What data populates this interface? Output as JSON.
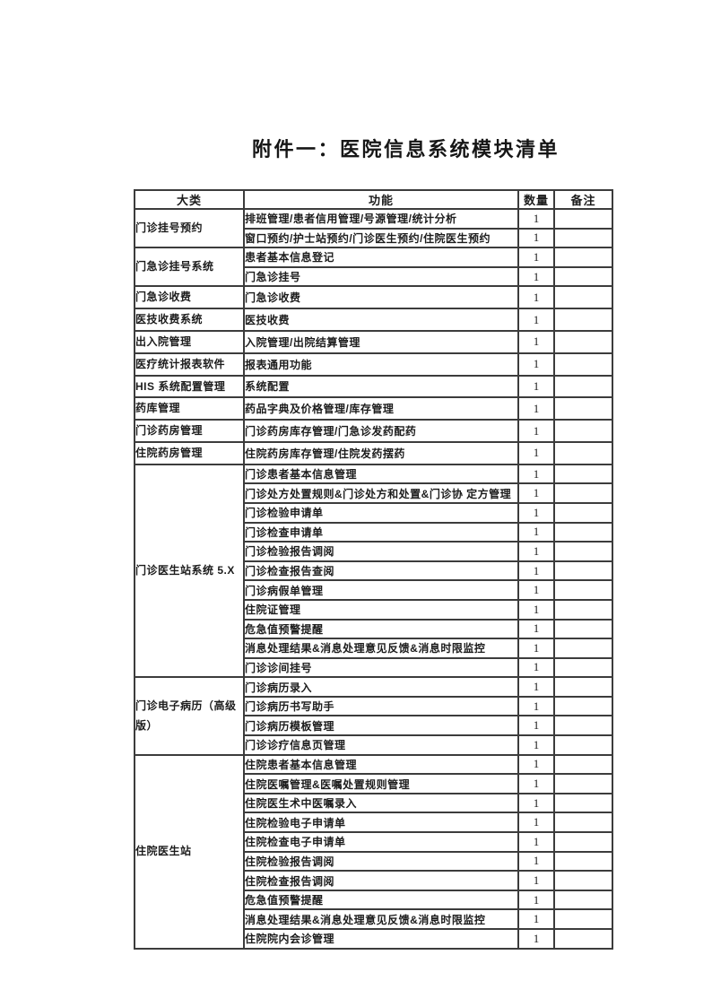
{
  "page": {
    "title": "附件一：医院信息系统模块清单"
  },
  "colors": {
    "background": "#ffffff",
    "text": "#1c1c1c",
    "table_line": "#3c3c3c"
  },
  "table": {
    "headers": [
      "大类",
      "功能",
      "数量",
      "备注"
    ],
    "groups": [
      {
        "category": "门诊挂号预约",
        "rows": [
          {
            "function": "排班管理/患者信用管理/号源管理/统计分析",
            "qty": "1",
            "remark": ""
          },
          {
            "function": "窗口预约/护士站预约/门诊医生预约/住院医生预约",
            "qty": "1",
            "remark": ""
          }
        ]
      },
      {
        "category": "门急诊挂号系统",
        "rows": [
          {
            "function": "患者基本信息登记",
            "qty": "1",
            "remark": ""
          },
          {
            "function": "门急诊挂号",
            "qty": "1",
            "remark": ""
          }
        ]
      },
      {
        "category": "门急诊收费",
        "rows": [
          {
            "function": "门急诊收费",
            "qty": "1",
            "remark": ""
          }
        ]
      },
      {
        "category": "医技收费系统",
        "rows": [
          {
            "function": "医技收费",
            "qty": "1",
            "remark": ""
          }
        ]
      },
      {
        "category": "出入院管理",
        "rows": [
          {
            "function": "入院管理/出院结算管理",
            "qty": "1",
            "remark": ""
          }
        ]
      },
      {
        "category": "医疗统计报表软件",
        "rows": [
          {
            "function": "报表通用功能",
            "qty": "1",
            "remark": ""
          }
        ]
      },
      {
        "category": "HIS 系统配置管理",
        "rows": [
          {
            "function": "系统配置",
            "qty": "1",
            "remark": ""
          }
        ]
      },
      {
        "category": "药库管理",
        "rows": [
          {
            "function": "药品字典及价格管理/库存管理",
            "qty": "1",
            "remark": ""
          }
        ]
      },
      {
        "category": "门诊药房管理",
        "rows": [
          {
            "function": "门诊药房库存管理/门急诊发药配药",
            "qty": "1",
            "remark": ""
          }
        ]
      },
      {
        "category": "住院药房管理",
        "rows": [
          {
            "function": "住院药房库存管理/住院发药摆药",
            "qty": "1",
            "remark": ""
          }
        ]
      },
      {
        "category": "门诊医生站系统 5.X",
        "rows": [
          {
            "function": "门诊患者基本信息管理",
            "qty": "1",
            "remark": ""
          },
          {
            "function": "门诊处方处置规则&门诊处方和处置&门诊协 定方管理",
            "qty": "1",
            "remark": ""
          },
          {
            "function": "门诊检验申请单",
            "qty": "1",
            "remark": ""
          },
          {
            "function": "门诊检查申请单",
            "qty": "1",
            "remark": ""
          },
          {
            "function": "门诊检验报告调阅",
            "qty": "1",
            "remark": ""
          },
          {
            "function": "门诊检查报告查阅",
            "qty": "1",
            "remark": ""
          },
          {
            "function": "门诊病假单管理",
            "qty": "1",
            "remark": ""
          },
          {
            "function": "住院证管理",
            "qty": "1",
            "remark": ""
          },
          {
            "function": "危急值预警提醒",
            "qty": "1",
            "remark": ""
          },
          {
            "function": "消息处理结果&消息处理意见反馈&消息时限监控",
            "qty": "1",
            "remark": ""
          },
          {
            "function": "门诊诊间挂号",
            "qty": "1",
            "remark": ""
          }
        ]
      },
      {
        "category": "门诊电子病历（高级版）",
        "rows": [
          {
            "function": "门诊病历录入",
            "qty": "1",
            "remark": ""
          },
          {
            "function": "门诊病历书写助手",
            "qty": "1",
            "remark": ""
          },
          {
            "function": "门诊病历模板管理",
            "qty": "1",
            "remark": ""
          },
          {
            "function": "门诊诊疗信息页管理",
            "qty": "1",
            "remark": ""
          }
        ]
      },
      {
        "category": "住院医生站",
        "rows": [
          {
            "function": "住院患者基本信息管理",
            "qty": "1",
            "remark": ""
          },
          {
            "function": "住院医嘱管理&医嘱处置规则管理",
            "qty": "1",
            "remark": ""
          },
          {
            "function": "住院医生术中医嘱录入",
            "qty": "1",
            "remark": ""
          },
          {
            "function": "住院检验电子申请单",
            "qty": "1",
            "remark": ""
          },
          {
            "function": "住院检查电子申请单",
            "qty": "1",
            "remark": ""
          },
          {
            "function": "住院检验报告调阅",
            "qty": "1",
            "remark": ""
          },
          {
            "function": "住院检查报告调阅",
            "qty": "1",
            "remark": ""
          },
          {
            "function": "危急值预警提醒",
            "qty": "1",
            "remark": ""
          },
          {
            "function": "消息处理结果&消息处理意见反馈&消息时限监控",
            "qty": "1",
            "remark": ""
          },
          {
            "function": "住院院内会诊管理",
            "qty": "1",
            "remark": ""
          }
        ]
      }
    ]
  }
}
